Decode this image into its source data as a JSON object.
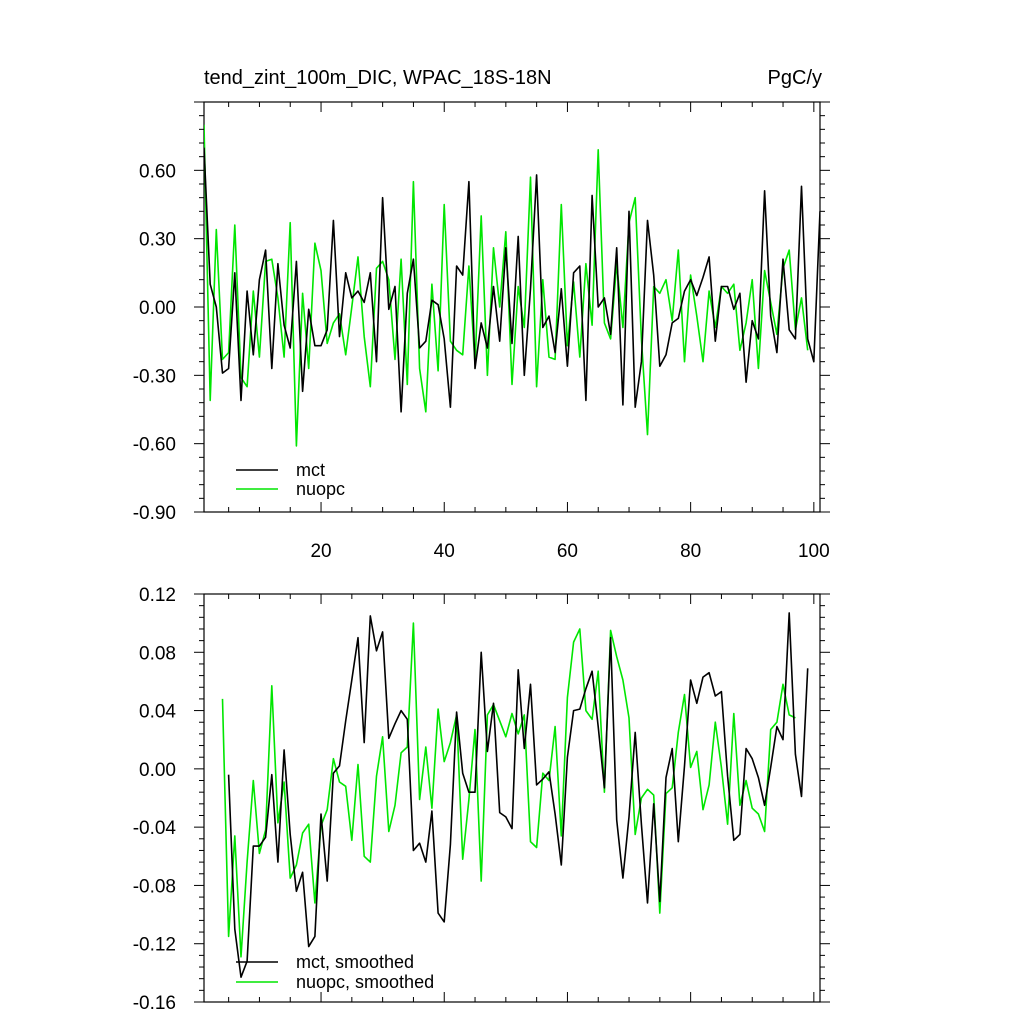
{
  "header": {
    "title": "tend_zint_100m_DIC, WPAC_18S-18N",
    "units": "PgC/y"
  },
  "colors": {
    "mct": "#000000",
    "nuopc": "#00e600",
    "axis": "#000000"
  },
  "chart_data": [
    {
      "type": "line",
      "title": "tend_zint_100m_DIC, WPAC_18S-18N",
      "units": "PgC/y",
      "xlim": [
        1,
        101
      ],
      "ylim": [
        -0.9,
        0.9
      ],
      "x_ticks": [
        20,
        40,
        60,
        80,
        100
      ],
      "y_ticks": [
        -0.9,
        -0.6,
        -0.3,
        0.0,
        0.3,
        0.6
      ],
      "y_tick_labels": [
        "-0.90",
        "-0.60",
        "-0.30",
        "0.00",
        "0.30",
        "0.60"
      ],
      "grid": false,
      "legend": "bottom-left",
      "series": [
        {
          "name": "mct",
          "color": "#000000",
          "x_start": 1,
          "values": [
            0.7,
            0.1,
            0.0,
            -0.29,
            -0.27,
            0.15,
            -0.41,
            0.07,
            -0.21,
            0.12,
            0.25,
            -0.27,
            0.19,
            -0.08,
            -0.18,
            0.2,
            -0.37,
            -0.01,
            -0.17,
            -0.17,
            -0.1,
            0.38,
            -0.13,
            0.15,
            0.04,
            0.07,
            0.02,
            0.15,
            -0.24,
            0.48,
            -0.01,
            0.09,
            -0.46,
            0.06,
            0.21,
            -0.18,
            -0.15,
            0.03,
            0.01,
            -0.14,
            -0.44,
            0.18,
            0.14,
            0.55,
            -0.27,
            -0.07,
            -0.18,
            0.09,
            -0.15,
            0.26,
            -0.16,
            0.31,
            -0.3,
            0.08,
            0.58,
            -0.09,
            -0.04,
            -0.2,
            0.08,
            -0.26,
            0.15,
            0.18,
            -0.41,
            0.49,
            0.0,
            0.04,
            -0.12,
            0.26,
            -0.43,
            0.42,
            -0.44,
            -0.24,
            0.38,
            0.14,
            -0.26,
            -0.21,
            -0.07,
            -0.05,
            0.07,
            0.12,
            0.05,
            0.13,
            0.22,
            -0.15,
            0.09,
            0.09,
            -0.01,
            0.06,
            -0.33,
            -0.06,
            -0.14,
            0.51,
            -0.04,
            -0.2,
            0.21,
            -0.1,
            -0.14,
            0.53,
            -0.14,
            -0.24,
            0.42
          ]
        },
        {
          "name": "nuopc",
          "color": "#00e600",
          "x_start": 1,
          "values": [
            0.8,
            -0.41,
            0.34,
            -0.23,
            -0.2,
            0.36,
            -0.31,
            -0.35,
            0.07,
            -0.22,
            0.2,
            0.21,
            0.04,
            -0.22,
            0.37,
            -0.61,
            0.06,
            -0.27,
            0.28,
            0.16,
            -0.16,
            -0.07,
            -0.03,
            -0.21,
            0.0,
            0.22,
            -0.13,
            -0.35,
            0.17,
            0.2,
            0.12,
            -0.23,
            0.21,
            -0.34,
            0.55,
            -0.27,
            -0.46,
            0.1,
            -0.28,
            0.45,
            -0.15,
            -0.19,
            -0.21,
            0.18,
            -0.25,
            0.4,
            -0.3,
            0.26,
            0.0,
            0.33,
            -0.34,
            0.09,
            -0.09,
            0.57,
            -0.35,
            0.12,
            -0.22,
            -0.23,
            0.45,
            -0.17,
            0.11,
            -0.22,
            0.19,
            -0.08,
            0.69,
            -0.07,
            -0.14,
            0.19,
            -0.09,
            0.37,
            0.48,
            -0.14,
            -0.56,
            0.09,
            0.06,
            0.12,
            -0.06,
            0.25,
            -0.24,
            0.14,
            -0.04,
            -0.24,
            0.07,
            -0.09,
            0.09,
            0.06,
            0.1,
            -0.19,
            -0.07,
            0.12,
            -0.27,
            0.16,
            0.02,
            -0.12,
            0.17,
            0.25,
            -0.1,
            0.04,
            -0.19
          ]
        }
      ]
    },
    {
      "type": "line",
      "xlim": [
        1,
        101
      ],
      "ylim": [
        -0.16,
        0.12
      ],
      "x_ticks": [
        20,
        40,
        60,
        80,
        100
      ],
      "y_ticks": [
        -0.16,
        -0.12,
        -0.08,
        -0.04,
        0.0,
        0.04,
        0.08,
        0.12
      ],
      "y_tick_labels": [
        "-0.16",
        "-0.12",
        "-0.08",
        "-0.04",
        "0.00",
        "0.04",
        "0.08",
        "0.12"
      ],
      "grid": false,
      "legend": "bottom-left",
      "series": [
        {
          "name": "mct, smoothed",
          "color": "#000000",
          "x_start": 5,
          "values": [
            -0.004,
            -0.11,
            -0.143,
            -0.132,
            -0.053,
            -0.053,
            -0.047,
            -0.004,
            -0.064,
            0.013,
            -0.045,
            -0.084,
            -0.071,
            -0.122,
            -0.115,
            -0.031,
            -0.077,
            -0.003,
            0.002,
            0.033,
            0.061,
            0.09,
            0.018,
            0.105,
            0.081,
            0.094,
            0.021,
            0.031,
            0.04,
            0.034,
            -0.056,
            -0.051,
            -0.064,
            -0.029,
            -0.099,
            -0.105,
            -0.052,
            0.039,
            -0.003,
            -0.016,
            -0.016,
            0.08,
            0.012,
            0.045,
            -0.03,
            -0.033,
            -0.041,
            0.068,
            0.014,
            0.058,
            -0.011,
            -0.007,
            -0.002,
            -0.031,
            -0.066,
            0.008,
            0.04,
            0.041,
            0.055,
            0.067,
            0.029,
            -0.013,
            0.09,
            -0.035,
            -0.075,
            -0.033,
            0.025,
            -0.038,
            -0.092,
            -0.024,
            -0.091,
            -0.006,
            0.014,
            -0.05,
            0.002,
            0.061,
            0.045,
            0.063,
            0.066,
            0.05,
            0.053,
            -0.005,
            -0.049,
            -0.045,
            0.014,
            0.007,
            -0.006,
            -0.025,
            0.001,
            0.029,
            0.02,
            0.107,
            0.01,
            -0.019,
            0.069
          ]
        },
        {
          "name": "nuopc, smoothed",
          "color": "#00e600",
          "x_start": 4,
          "values": [
            0.048,
            -0.115,
            -0.046,
            -0.129,
            -0.064,
            -0.008,
            -0.058,
            -0.042,
            0.057,
            -0.037,
            -0.009,
            -0.075,
            -0.066,
            -0.044,
            -0.038,
            -0.092,
            -0.039,
            -0.028,
            0.007,
            -0.009,
            -0.012,
            -0.049,
            0.003,
            -0.06,
            -0.064,
            -0.005,
            0.022,
            -0.043,
            -0.025,
            0.011,
            0.015,
            0.1,
            -0.021,
            0.015,
            -0.027,
            0.041,
            0.005,
            0.018,
            0.037,
            -0.062,
            -0.021,
            0.027,
            -0.077,
            0.037,
            0.044,
            0.033,
            0.022,
            0.038,
            0.024,
            0.037,
            -0.05,
            -0.054,
            -0.003,
            -0.008,
            0.029,
            -0.046,
            0.049,
            0.087,
            0.096,
            0.04,
            0.034,
            0.067,
            -0.016,
            0.095,
            0.077,
            0.061,
            0.035,
            -0.045,
            -0.02,
            -0.014,
            -0.018,
            -0.099,
            -0.017,
            -0.013,
            0.025,
            0.051,
            0.001,
            0.012,
            -0.028,
            -0.011,
            0.032,
            0.001,
            -0.038,
            0.038,
            -0.025,
            -0.008,
            -0.027,
            -0.031,
            -0.043,
            0.027,
            0.032,
            0.058,
            0.037,
            0.035
          ]
        }
      ]
    }
  ]
}
